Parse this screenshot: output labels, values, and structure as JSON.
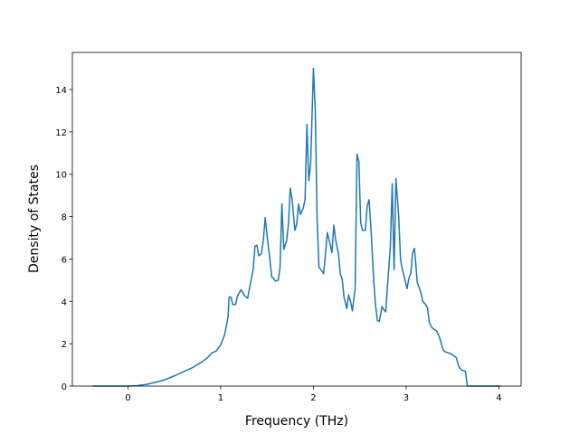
{
  "chart_data": {
    "type": "line",
    "x_label": "Frequency (THz)",
    "y_label": "Density of States",
    "xlim": [
      -0.6,
      4.24
    ],
    "ylim": [
      0,
      15.75
    ],
    "xticks": [
      0,
      1,
      2,
      3,
      4
    ],
    "yticks": [
      0,
      2,
      4,
      6,
      8,
      10,
      12,
      14
    ],
    "grid": false,
    "series": [
      {
        "color": "#1f77b4",
        "x": [
          -0.38,
          0,
          0.1,
          0.2,
          0.3,
          0.4,
          0.5,
          0.6,
          0.7,
          0.8,
          0.86,
          0.9,
          0.95,
          1.0,
          1.04,
          1.06,
          1.08,
          1.09,
          1.11,
          1.13,
          1.16,
          1.18,
          1.22,
          1.26,
          1.29,
          1.31,
          1.35,
          1.37,
          1.39,
          1.41,
          1.44,
          1.46,
          1.48,
          1.5,
          1.53,
          1.55,
          1.57,
          1.59,
          1.62,
          1.64,
          1.66,
          1.68,
          1.71,
          1.73,
          1.75,
          1.77,
          1.8,
          1.82,
          1.84,
          1.86,
          1.89,
          1.91,
          1.93,
          1.95,
          1.97,
          2.0,
          2.02,
          2.04,
          2.06,
          2.09,
          2.11,
          2.13,
          2.15,
          2.18,
          2.2,
          2.22,
          2.24,
          2.27,
          2.29,
          2.31,
          2.33,
          2.36,
          2.38,
          2.4,
          2.42,
          2.45,
          2.47,
          2.49,
          2.51,
          2.53,
          2.56,
          2.58,
          2.6,
          2.62,
          2.65,
          2.67,
          2.69,
          2.71,
          2.74,
          2.76,
          2.78,
          2.8,
          2.83,
          2.85,
          2.87,
          2.89,
          2.92,
          2.94,
          2.96,
          2.98,
          3.01,
          3.03,
          3.05,
          3.07,
          3.09,
          3.12,
          3.14,
          3.16,
          3.18,
          3.21,
          3.23,
          3.25,
          3.28,
          3.33,
          3.36,
          3.4,
          3.43,
          3.47,
          3.51,
          3.54,
          3.57,
          3.6,
          3.64,
          3.66,
          4.02
        ],
        "values": [
          0,
          0,
          0.02,
          0.08,
          0.18,
          0.3,
          0.48,
          0.68,
          0.88,
          1.15,
          1.35,
          1.55,
          1.65,
          1.95,
          2.4,
          2.8,
          3.3,
          4.2,
          4.2,
          3.85,
          3.85,
          4.25,
          4.55,
          4.25,
          4.15,
          4.6,
          5.5,
          6.6,
          6.65,
          6.15,
          6.25,
          6.9,
          7.95,
          7.1,
          6.0,
          5.15,
          5.1,
          4.95,
          5.0,
          5.6,
          8.6,
          6.45,
          6.85,
          7.6,
          9.35,
          8.8,
          7.35,
          7.65,
          8.6,
          8.1,
          8.4,
          8.8,
          12.35,
          9.7,
          10.5,
          15.0,
          13.0,
          7.8,
          5.6,
          5.45,
          5.3,
          6.25,
          7.25,
          6.7,
          6.3,
          7.6,
          6.9,
          6.25,
          5.3,
          5.05,
          4.2,
          3.65,
          4.3,
          4.0,
          3.55,
          4.6,
          10.95,
          10.6,
          7.7,
          7.35,
          7.35,
          8.5,
          8.8,
          7.5,
          5.0,
          3.8,
          3.1,
          3.05,
          3.75,
          3.6,
          3.5,
          4.8,
          6.6,
          9.55,
          5.5,
          9.8,
          8.0,
          5.95,
          5.5,
          5.15,
          4.6,
          5.1,
          5.3,
          6.3,
          6.5,
          4.9,
          4.65,
          4.4,
          4.0,
          3.85,
          3.7,
          3.0,
          2.75,
          2.6,
          2.3,
          1.7,
          1.6,
          1.55,
          1.45,
          1.35,
          0.9,
          0.75,
          0.7,
          0,
          0
        ]
      }
    ]
  }
}
